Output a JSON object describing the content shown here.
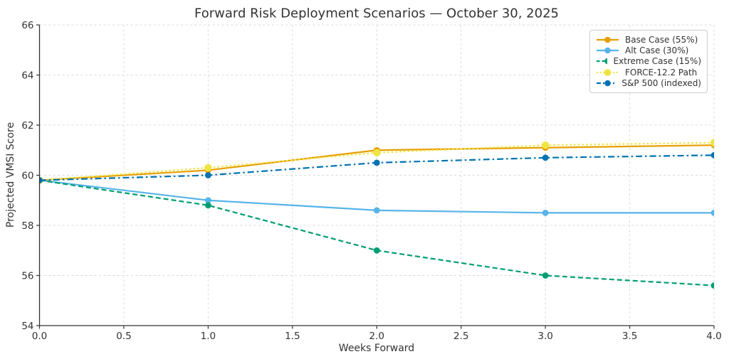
{
  "chart_data": {
    "type": "line",
    "title": "Forward Risk Deployment Scenarios — October 30, 2025",
    "xlabel": "Weeks Forward",
    "ylabel": "Projected VMSI Score",
    "xlim": [
      0.0,
      4.0
    ],
    "ylim": [
      54.0,
      66.0
    ],
    "x_ticks": [
      "0.0",
      "0.5",
      "1.0",
      "1.5",
      "2.0",
      "2.5",
      "3.0",
      "3.5",
      "4.0"
    ],
    "y_ticks": [
      "54",
      "56",
      "58",
      "60",
      "62",
      "64",
      "66"
    ],
    "grid": true,
    "legend_position": "upper right",
    "x": [
      0,
      1,
      2,
      3,
      4
    ],
    "series": [
      {
        "name": "Base Case (55%)",
        "values": [
          59.8,
          60.2,
          61.0,
          61.1,
          61.2
        ],
        "color": "#E69F00",
        "linestyle": "solid",
        "marker": "circle"
      },
      {
        "name": "Alt Case (30%)",
        "values": [
          59.8,
          59.0,
          58.6,
          58.5,
          58.5
        ],
        "color": "#56B4E9",
        "linestyle": "solid",
        "marker": "circle"
      },
      {
        "name": "Extreme Case (15%)",
        "values": [
          59.8,
          58.8,
          57.0,
          56.0,
          55.6
        ],
        "color": "#009E73",
        "linestyle": "dashed",
        "marker": "circle"
      },
      {
        "name": "FORCE-12.2 Path",
        "values": [
          59.8,
          60.3,
          60.9,
          61.2,
          61.3
        ],
        "color": "#F0E442",
        "linestyle": "dotted",
        "marker": "circle"
      },
      {
        "name": "S&P 500 (indexed)",
        "values": [
          59.8,
          60.0,
          60.5,
          60.7,
          60.8
        ],
        "color": "#0072B2",
        "linestyle": "dashdot",
        "marker": "circle"
      }
    ],
    "colors": {
      "axis": "#333333",
      "grid": "#DCDCDC",
      "background": "#FFFFFF",
      "legend_border": "#CCCCCC"
    }
  }
}
